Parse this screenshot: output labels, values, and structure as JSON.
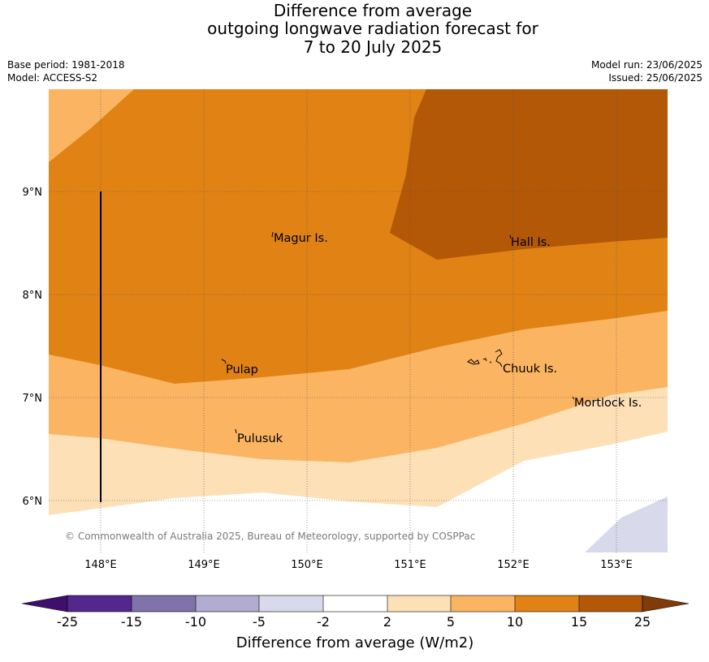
{
  "title": {
    "line1": "Difference from average",
    "line2": "outgoing longwave radiation forecast for",
    "line3": "7 to 20 July 2025"
  },
  "meta_left": {
    "base_period": "Base period: 1981-2018",
    "model": "Model: ACCESS-S2"
  },
  "meta_right": {
    "model_run": "Model run: 23/06/2025",
    "issued": "Issued: 25/06/2025"
  },
  "map": {
    "lon_ticks": [
      "148°E",
      "149°E",
      "150°E",
      "151°E",
      "152°E",
      "153°E"
    ],
    "lat_ticks": [
      "9°N",
      "8°N",
      "7°N",
      "6°N"
    ],
    "place_labels": [
      "Magur Is.",
      "Hall Is.",
      "Pulap",
      "Chuuk Is.",
      "Mortlock Is.",
      "Pulusuk"
    ],
    "copyright": "© Commonwealth of Australia 2025, Bureau of Meteorology, supported by COSPPac"
  },
  "colorbar": {
    "ticks": [
      "-25",
      "-15",
      "-10",
      "-5",
      "-2",
      "2",
      "5",
      "10",
      "15",
      "25"
    ],
    "colors": [
      "#3f0f6b",
      "#54278f",
      "#8073ac",
      "#b2abd2",
      "#d8daeb",
      "#ffffff",
      "#fde0b6",
      "#fbb461",
      "#e08214",
      "#b35806",
      "#7f3b08"
    ],
    "label": "Difference from average (W/m2)"
  }
}
